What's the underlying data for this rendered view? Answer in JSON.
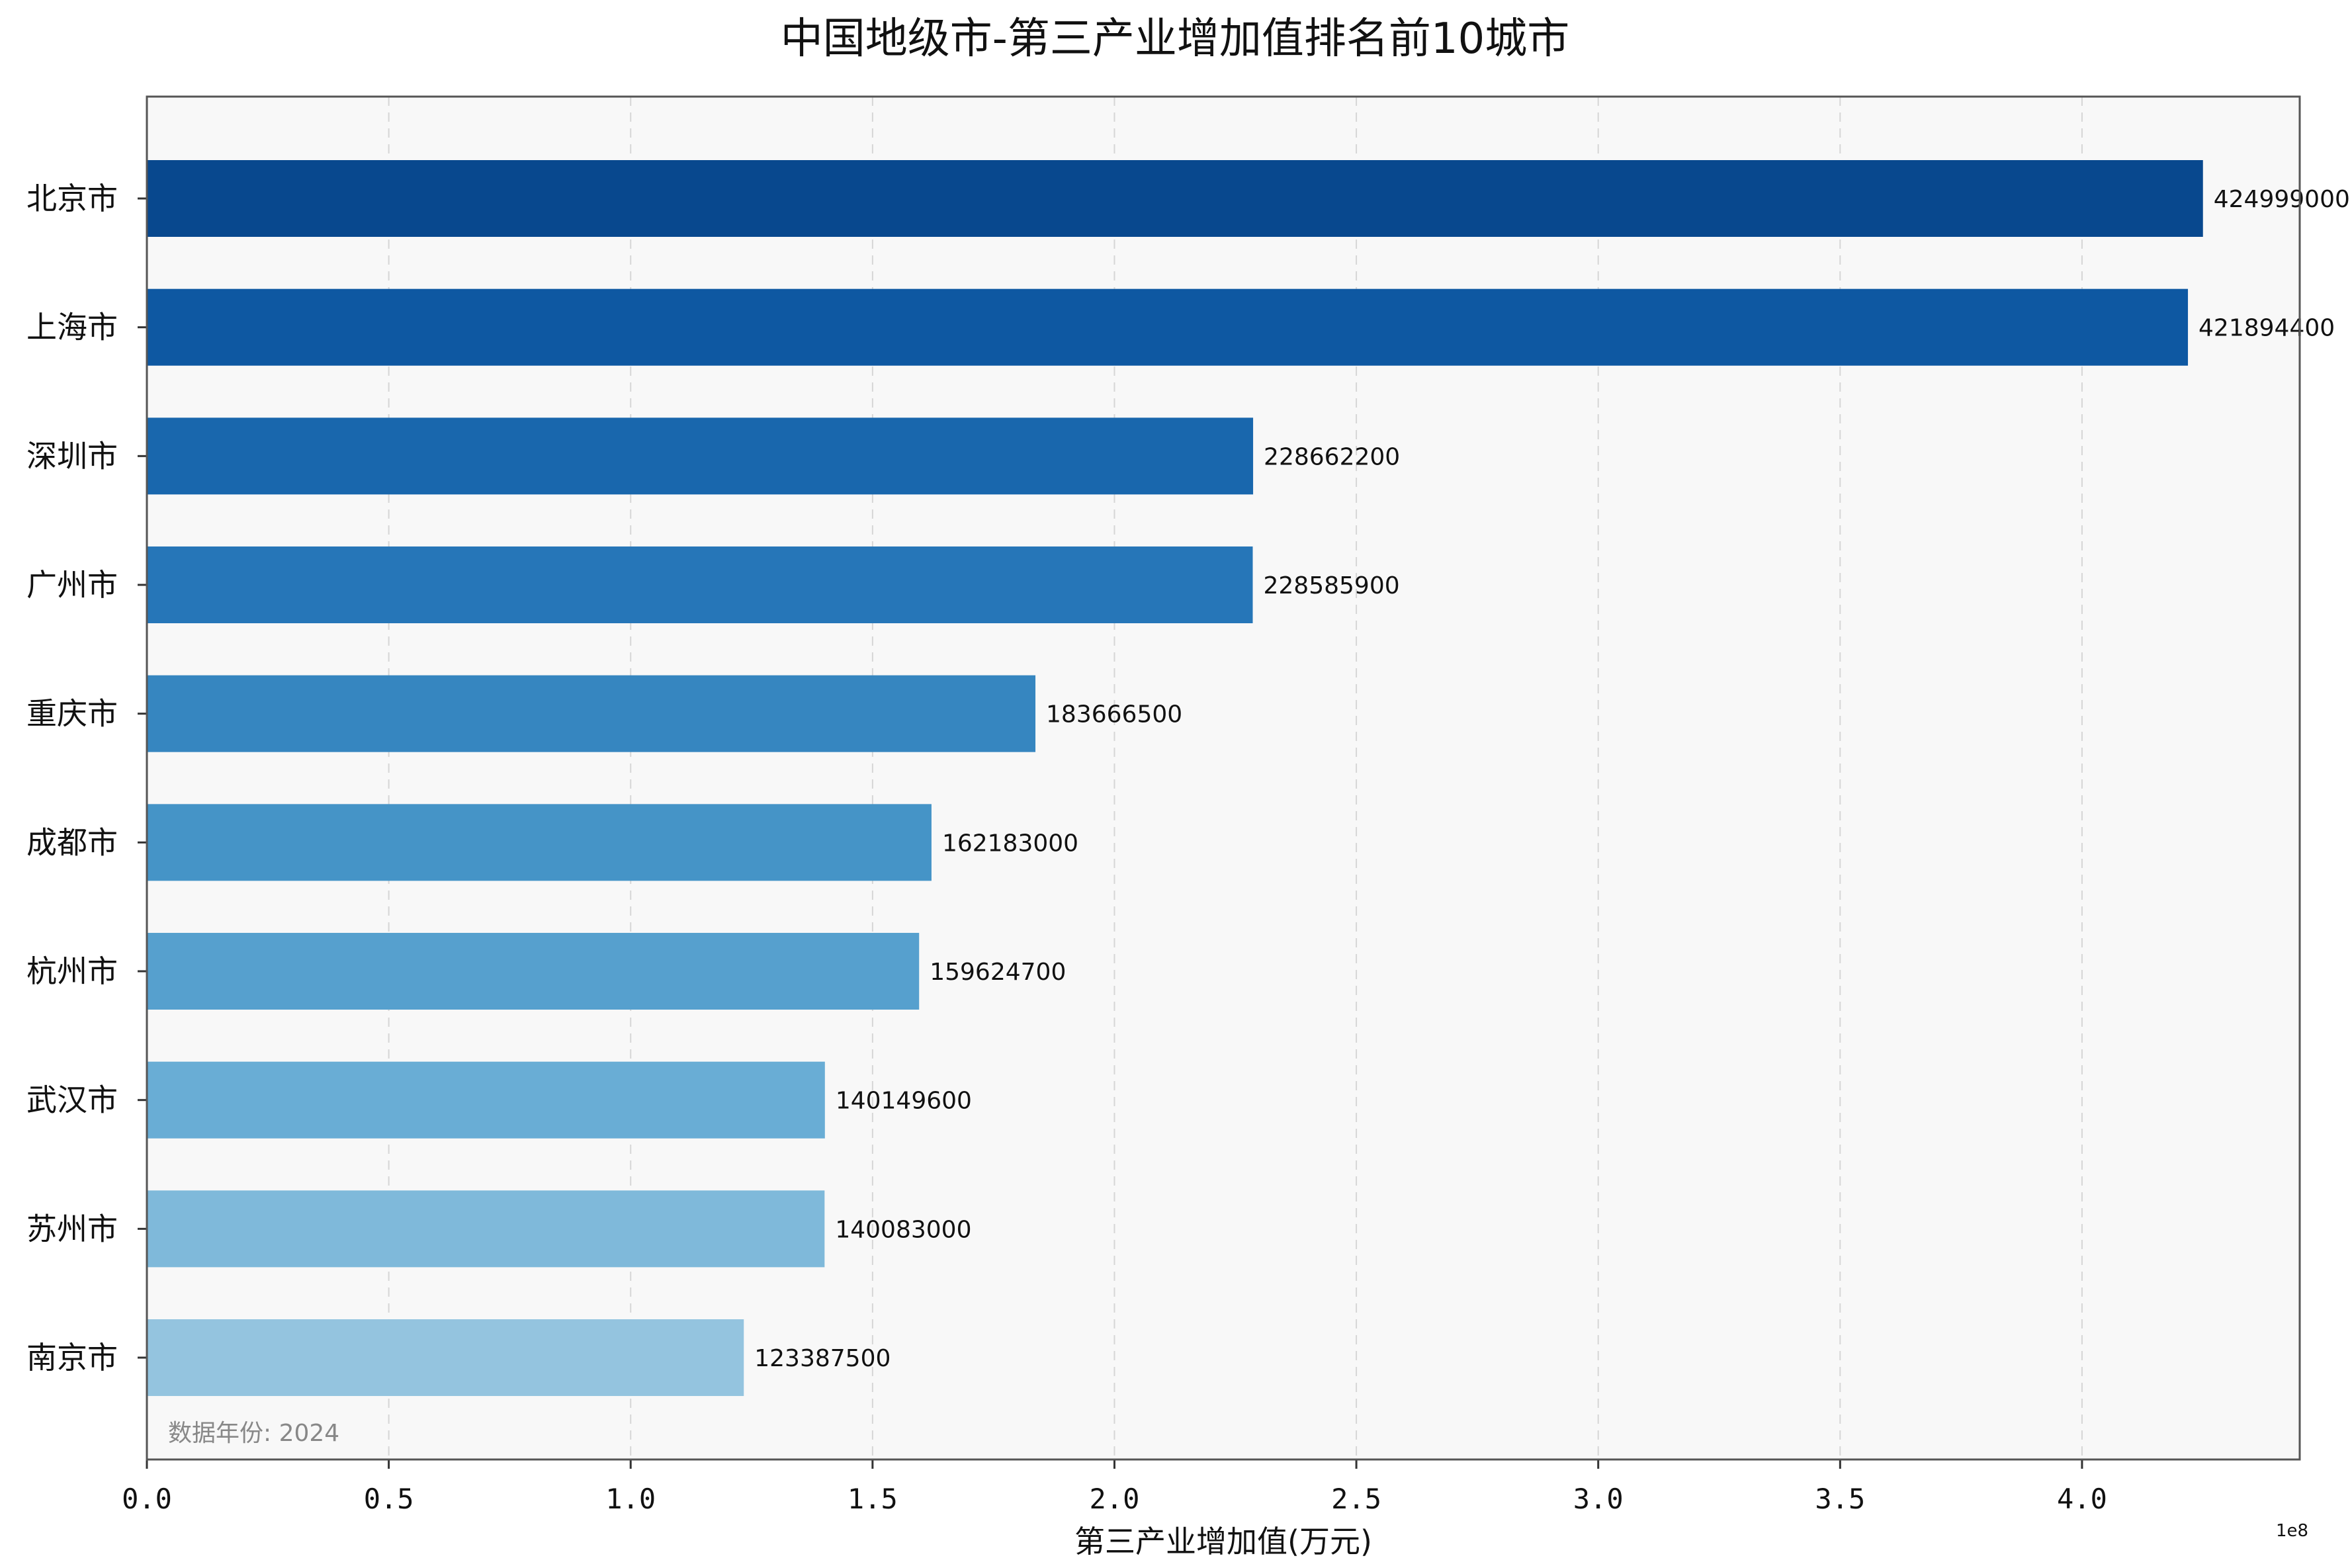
{
  "chart_data": {
    "type": "bar",
    "orientation": "horizontal",
    "title": "中国地级市-第三产业增加值排名前10城市",
    "xlabel": "第三产业增加值(万元)",
    "ylabel": "",
    "x_offset_label": "1e8",
    "xlim": [
      0,
      445000000
    ],
    "xticks": [
      0,
      50000000,
      100000000,
      150000000,
      200000000,
      250000000,
      300000000,
      350000000,
      400000000
    ],
    "xtick_labels": [
      "0.0",
      "0.5",
      "1.0",
      "1.5",
      "2.0",
      "2.5",
      "3.0",
      "3.5",
      "4.0"
    ],
    "grid": "x-dashed",
    "categories": [
      "北京市",
      "上海市",
      "深圳市",
      "广州市",
      "重庆市",
      "成都市",
      "杭州市",
      "武汉市",
      "苏州市",
      "南京市"
    ],
    "values": [
      424999000,
      421894400,
      228662200,
      228585900,
      183666500,
      162183000,
      159624700,
      140149600,
      140083000,
      123387500
    ],
    "value_labels": [
      "424999000",
      "421894400",
      "228662200",
      "228585900",
      "183666500",
      "162183000",
      "159624700",
      "140149600",
      "140083000",
      "123387500"
    ],
    "colors": [
      "#08488e",
      "#0e58a2",
      "#1967ad",
      "#2676b8",
      "#3686c0",
      "#4594c7",
      "#56a0ce",
      "#69add5",
      "#7fb9da",
      "#94c4df"
    ],
    "annotation": "数据年份: 2024",
    "plot_background": "#f8f8f8"
  }
}
